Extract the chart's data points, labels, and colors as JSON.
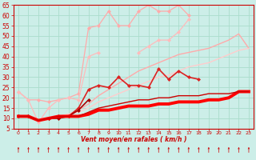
{
  "bg_color": "#cceee8",
  "grid_color": "#aaddcc",
  "xlabel": "Vent moyen/en rafales ( km/h )",
  "ylim": [
    5,
    65
  ],
  "xlim": [
    -0.5,
    23.5
  ],
  "yticks": [
    5,
    10,
    15,
    20,
    25,
    30,
    35,
    40,
    45,
    50,
    55,
    60,
    65
  ],
  "xticks": [
    0,
    1,
    2,
    3,
    4,
    5,
    6,
    7,
    8,
    9,
    10,
    11,
    12,
    13,
    14,
    15,
    16,
    17,
    18,
    19,
    20,
    21,
    22,
    23
  ],
  "tick_color": "#cc0000",
  "axis_color": "#cc0000",
  "label_color": "#cc0000",
  "series": [
    {
      "x": [
        0,
        1,
        2,
        3,
        4,
        5,
        6,
        7,
        8,
        9,
        10,
        11,
        12,
        13,
        14,
        15,
        16,
        17,
        18,
        19,
        20,
        21,
        22,
        23
      ],
      "y": [
        23,
        19,
        19,
        18,
        19,
        20,
        22,
        54,
        55,
        62,
        55,
        55,
        62,
        65,
        62,
        62,
        65,
        60,
        null,
        null,
        null,
        null,
        null,
        null
      ],
      "color": "#ffaaaa",
      "lw": 0.9,
      "marker": "D",
      "ms": 2.0,
      "zorder": 2
    },
    {
      "x": [
        0,
        1,
        2,
        3,
        4,
        5,
        6,
        7,
        8,
        9,
        10,
        11,
        12,
        13,
        14,
        15,
        16,
        17,
        18,
        19,
        20,
        21,
        22,
        23
      ],
      "y": [
        23,
        19,
        8,
        15,
        19,
        20,
        19,
        40,
        42,
        null,
        null,
        null,
        42,
        45,
        48,
        48,
        52,
        58,
        null,
        null,
        null,
        null,
        null,
        null
      ],
      "color": "#ffbbbb",
      "lw": 0.9,
      "marker": "D",
      "ms": 2.0,
      "zorder": 2
    },
    {
      "x": [
        0,
        1,
        2,
        3,
        4,
        5,
        6,
        7,
        8,
        9,
        10,
        11,
        12,
        13,
        14,
        15,
        16,
        17,
        18,
        19,
        20,
        21,
        22,
        23
      ],
      "y": [
        11,
        11,
        9,
        10,
        11,
        12,
        14,
        17,
        21,
        24,
        27,
        30,
        33,
        35,
        37,
        39,
        41,
        42,
        43,
        44,
        46,
        48,
        51,
        44
      ],
      "color": "#ffaaaa",
      "lw": 1.0,
      "marker": null,
      "ms": 0,
      "zorder": 2
    },
    {
      "x": [
        0,
        1,
        2,
        3,
        4,
        5,
        6,
        7,
        8,
        9,
        10,
        11,
        12,
        13,
        14,
        15,
        16,
        17,
        18,
        19,
        20,
        21,
        22,
        23
      ],
      "y": [
        11,
        11,
        9,
        10,
        11,
        12,
        13,
        15,
        18,
        20,
        22,
        24,
        26,
        28,
        30,
        31,
        33,
        35,
        36,
        37,
        39,
        41,
        43,
        44
      ],
      "color": "#ffcccc",
      "lw": 1.0,
      "marker": null,
      "ms": 0,
      "zorder": 2
    },
    {
      "x": [
        0,
        1,
        2,
        3,
        4,
        5,
        6,
        7,
        8,
        9,
        10,
        11,
        12,
        13,
        14,
        15,
        16,
        17,
        18,
        19,
        20,
        21,
        22,
        23
      ],
      "y": [
        11,
        11,
        null,
        10,
        11,
        11,
        15,
        24,
        26,
        25,
        30,
        26,
        26,
        25,
        34,
        29,
        33,
        30,
        29,
        null,
        null,
        null,
        null,
        null
      ],
      "color": "#dd2222",
      "lw": 1.2,
      "marker": "D",
      "ms": 2.0,
      "zorder": 3
    },
    {
      "x": [
        0,
        1,
        2,
        3,
        4,
        5,
        6,
        7,
        8,
        9,
        10,
        11,
        12,
        13,
        14,
        15,
        16,
        17,
        18,
        19,
        20,
        21,
        22,
        23
      ],
      "y": [
        11,
        11,
        9,
        10,
        11,
        11,
        11,
        12,
        14,
        14,
        15,
        16,
        16,
        16,
        17,
        17,
        18,
        18,
        18,
        19,
        19,
        20,
        23,
        23
      ],
      "color": "#ff0000",
      "lw": 2.8,
      "marker": null,
      "ms": 0,
      "zorder": 4
    },
    {
      "x": [
        0,
        1,
        2,
        3,
        4,
        5,
        6,
        7,
        8,
        9,
        10,
        11,
        12,
        13,
        14,
        15,
        16,
        17,
        18,
        19,
        20,
        21,
        22,
        23
      ],
      "y": [
        11,
        11,
        9,
        10,
        11,
        11,
        11,
        13,
        15,
        16,
        17,
        18,
        19,
        19,
        20,
        20,
        21,
        21,
        21,
        22,
        22,
        22,
        23,
        23
      ],
      "color": "#cc0000",
      "lw": 1.0,
      "marker": null,
      "ms": 0,
      "zorder": 4
    },
    {
      "x": [
        0,
        1,
        2,
        3,
        4,
        5,
        6,
        7,
        8,
        9,
        10,
        11,
        12,
        13,
        14,
        15,
        16,
        17,
        18,
        19,
        20,
        21,
        22,
        23
      ],
      "y": [
        11,
        11,
        null,
        10,
        10,
        11,
        14,
        19,
        null,
        null,
        null,
        null,
        null,
        null,
        null,
        null,
        null,
        null,
        null,
        null,
        null,
        null,
        null,
        null
      ],
      "color": "#aa0000",
      "lw": 1.2,
      "marker": "D",
      "ms": 2.0,
      "zorder": 3
    }
  ]
}
